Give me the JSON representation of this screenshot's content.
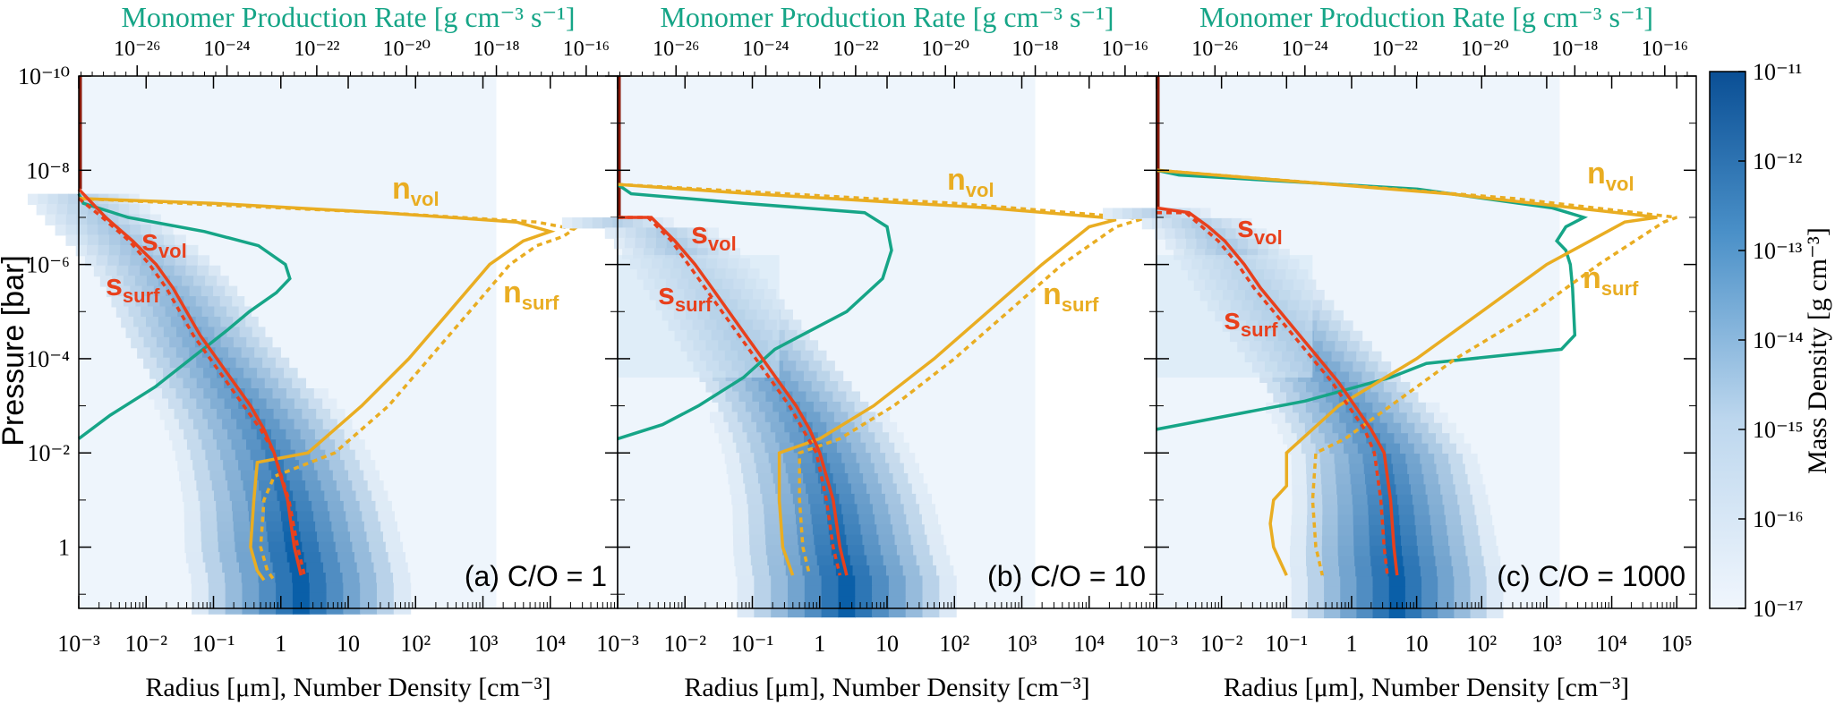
{
  "colors": {
    "green": "#16a587",
    "orange": "#e9ad22",
    "red": "#e8401c",
    "blue_dark": "#0a5fa8",
    "blue_light": "#eef5fc"
  },
  "chart_data": {
    "type": "heatmap",
    "top_axis_label": "Monomer Production Rate [g cm⁻³ s⁻¹]",
    "bottom_axis_label": "Radius [μm], Number Density [cm⁻³]",
    "y_axis_label": "Pressure [bar]",
    "colorbar_label": "Mass Density [g cm⁻³]",
    "colorbar_ticks": [
      "10⁻¹¹",
      "10⁻¹²",
      "10⁻¹³",
      "10⁻¹⁴",
      "10⁻¹⁵",
      "10⁻¹⁶",
      "10⁻¹⁷"
    ],
    "colorbar_range_log10": [
      -17,
      -11
    ],
    "y_ticks": [
      "10⁻¹⁰",
      "10⁻⁸",
      "10⁻⁶",
      "10⁻⁴",
      "10⁻²",
      "1"
    ],
    "y_range_log10_pressure": [
      -10,
      1.3
    ],
    "top_ticks": [
      "10⁻²⁶",
      "10⁻²⁴",
      "10⁻²²",
      "10⁻²⁰",
      "10⁻¹⁸",
      "10⁻¹⁶"
    ],
    "top_range_log10": [
      -27.3,
      -15.3
    ],
    "curve_labels": {
      "n_vol": {
        "main": "n",
        "sub": "vol"
      },
      "n_surf": {
        "main": "n",
        "sub": "surf"
      },
      "s_vol": {
        "main": "s",
        "sub": "vol"
      },
      "s_surf": {
        "main": "s",
        "sub": "surf"
      }
    },
    "panels": [
      {
        "label": "(a) C/O = 1",
        "x_range_log10": [
          -3,
          5
        ],
        "x_ticks": [
          "10⁻³",
          "10⁻²",
          "10⁻¹",
          "1",
          "10",
          "10²",
          "10³",
          "10⁴"
        ],
        "series": {
          "monomer_log10_rate": [
            [
              -7.5,
              -27.3
            ],
            [
              -7.3,
              -27.2
            ],
            [
              -7.0,
              -26.2
            ],
            [
              -6.7,
              -24.5
            ],
            [
              -6.4,
              -23.3
            ],
            [
              -6.0,
              -22.7
            ],
            [
              -5.7,
              -22.6
            ],
            [
              -5.4,
              -22.9
            ],
            [
              -5.0,
              -23.5
            ],
            [
              -4.6,
              -24.0
            ],
            [
              -4.0,
              -24.8
            ],
            [
              -3.4,
              -25.6
            ],
            [
              -2.8,
              -26.6
            ],
            [
              -2.3,
              -27.3
            ]
          ],
          "n_vol": [
            [
              -7.4,
              -3.0
            ],
            [
              -7.3,
              -1.0
            ],
            [
              -7.1,
              1.5
            ],
            [
              -6.9,
              3.5
            ],
            [
              -6.7,
              4.0
            ],
            [
              -6.5,
              3.6
            ],
            [
              -6.0,
              3.1
            ],
            [
              -5.0,
              2.5
            ],
            [
              -4.0,
              1.9
            ],
            [
              -3.0,
              1.2
            ],
            [
              -2.0,
              0.4
            ],
            [
              -1.8,
              -0.35
            ],
            [
              -1.0,
              -0.4
            ],
            [
              0.0,
              -0.45
            ],
            [
              0.5,
              -0.35
            ],
            [
              0.7,
              -0.25
            ]
          ],
          "n_surf": [
            [
              -7.4,
              -3.0
            ],
            [
              -7.1,
              1.5
            ],
            [
              -6.9,
              3.8
            ],
            [
              -6.75,
              4.35
            ],
            [
              -6.6,
              4.2
            ],
            [
              -6.4,
              3.8
            ],
            [
              -6.0,
              3.4
            ],
            [
              -5.0,
              2.8
            ],
            [
              -4.0,
              2.2
            ],
            [
              -3.0,
              1.6
            ],
            [
              -2.0,
              0.8
            ],
            [
              -1.5,
              -0.1
            ],
            [
              -1.0,
              -0.25
            ],
            [
              0.0,
              -0.3
            ],
            [
              0.5,
              -0.2
            ],
            [
              0.7,
              -0.1
            ]
          ],
          "s_vol": [
            [
              -10.0,
              -3.0
            ],
            [
              -7.6,
              -3.0
            ],
            [
              -7.0,
              -2.6
            ],
            [
              -6.5,
              -2.2
            ],
            [
              -6.0,
              -1.85
            ],
            [
              -5.5,
              -1.6
            ],
            [
              -5.0,
              -1.4
            ],
            [
              -4.5,
              -1.2
            ],
            [
              -4.0,
              -0.95
            ],
            [
              -3.5,
              -0.7
            ],
            [
              -3.0,
              -0.45
            ],
            [
              -2.5,
              -0.25
            ],
            [
              -2.0,
              -0.1
            ],
            [
              -1.0,
              0.1
            ],
            [
              0.0,
              0.2
            ],
            [
              0.6,
              0.3
            ]
          ],
          "s_surf": [
            [
              -7.4,
              -3.0
            ],
            [
              -7.0,
              -2.65
            ],
            [
              -6.5,
              -2.25
            ],
            [
              -6.0,
              -1.95
            ],
            [
              -5.5,
              -1.7
            ],
            [
              -5.0,
              -1.5
            ],
            [
              -4.5,
              -1.3
            ],
            [
              -4.0,
              -1.05
            ],
            [
              -3.5,
              -0.8
            ],
            [
              -3.0,
              -0.55
            ],
            [
              -2.5,
              -0.3
            ],
            [
              -2.0,
              -0.1
            ],
            [
              -1.0,
              0.12
            ],
            [
              0.0,
              0.25
            ],
            [
              0.6,
              0.35
            ]
          ]
        }
      },
      {
        "label": "(b) C/O = 10",
        "x_range_log10": [
          -3,
          5
        ],
        "x_ticks": [
          "10⁻³",
          "10⁻²",
          "10⁻¹",
          "1",
          "10",
          "10²",
          "10³",
          "10⁴"
        ],
        "series": {
          "monomer_log10_rate": [
            [
              -7.7,
              -27.3
            ],
            [
              -7.5,
              -27.0
            ],
            [
              -7.3,
              -24.5
            ],
            [
              -7.1,
              -21.8
            ],
            [
              -6.8,
              -21.3
            ],
            [
              -6.3,
              -21.2
            ],
            [
              -5.7,
              -21.4
            ],
            [
              -5.0,
              -22.2
            ],
            [
              -4.2,
              -23.8
            ],
            [
              -3.6,
              -24.5
            ],
            [
              -3.0,
              -25.5
            ],
            [
              -2.6,
              -26.3
            ],
            [
              -2.3,
              -27.3
            ]
          ],
          "n_vol": [
            [
              -7.7,
              -3.0
            ],
            [
              -7.5,
              -1.0
            ],
            [
              -7.2,
              2.5
            ],
            [
              -7.0,
              4.2
            ],
            [
              -6.95,
              4.4
            ],
            [
              -6.8,
              4.0
            ],
            [
              -6.0,
              3.3
            ],
            [
              -5.0,
              2.5
            ],
            [
              -4.0,
              1.7
            ],
            [
              -3.0,
              0.8
            ],
            [
              -2.3,
              0.0
            ],
            [
              -2.0,
              -0.6
            ],
            [
              -1.0,
              -0.6
            ],
            [
              0.0,
              -0.55
            ],
            [
              0.6,
              -0.4
            ]
          ],
          "n_surf": [
            [
              -7.7,
              -3.0
            ],
            [
              -7.3,
              2.0
            ],
            [
              -7.0,
              4.6
            ],
            [
              -6.95,
              4.75
            ],
            [
              -6.8,
              4.4
            ],
            [
              -6.0,
              3.6
            ],
            [
              -5.0,
              2.8
            ],
            [
              -4.0,
              2.0
            ],
            [
              -3.0,
              1.1
            ],
            [
              -2.3,
              0.3
            ],
            [
              -2.0,
              -0.3
            ],
            [
              -1.0,
              -0.3
            ],
            [
              0.0,
              -0.25
            ],
            [
              0.6,
              -0.15
            ]
          ],
          "s_vol": [
            [
              -10.0,
              -3.0
            ],
            [
              -7.0,
              -3.0
            ],
            [
              -7.0,
              -2.5
            ],
            [
              -6.5,
              -2.15
            ],
            [
              -6.0,
              -1.85
            ],
            [
              -5.5,
              -1.6
            ],
            [
              -5.0,
              -1.35
            ],
            [
              -4.5,
              -1.1
            ],
            [
              -4.0,
              -0.85
            ],
            [
              -3.5,
              -0.6
            ],
            [
              -3.0,
              -0.35
            ],
            [
              -2.5,
              -0.15
            ],
            [
              -2.0,
              0.0
            ],
            [
              -1.0,
              0.2
            ],
            [
              0.0,
              0.3
            ],
            [
              0.6,
              0.4
            ]
          ],
          "s_surf": [
            [
              -7.0,
              -3.0
            ],
            [
              -7.0,
              -2.55
            ],
            [
              -6.5,
              -2.2
            ],
            [
              -6.0,
              -1.95
            ],
            [
              -5.5,
              -1.7
            ],
            [
              -5.0,
              -1.45
            ],
            [
              -4.5,
              -1.2
            ],
            [
              -4.0,
              -0.95
            ],
            [
              -3.5,
              -0.7
            ],
            [
              -3.0,
              -0.45
            ],
            [
              -2.5,
              -0.25
            ],
            [
              -2.0,
              -0.05
            ],
            [
              -1.0,
              0.1
            ],
            [
              0.0,
              0.2
            ],
            [
              0.6,
              0.3
            ]
          ]
        }
      },
      {
        "label": "(c) C/O = 1000",
        "x_range_log10": [
          -3,
          5.3
        ],
        "x_ticks": [
          "10⁻³",
          "10⁻²",
          "10⁻¹",
          "1",
          "10",
          "10²",
          "10³",
          "10⁴",
          "10⁵"
        ],
        "series": {
          "monomer_log10_rate": [
            [
              -8.0,
              -27.3
            ],
            [
              -7.9,
              -26.8
            ],
            [
              -7.6,
              -21.5
            ],
            [
              -7.2,
              -18.5
            ],
            [
              -7.0,
              -17.8
            ],
            [
              -6.8,
              -18.2
            ],
            [
              -6.5,
              -18.4
            ],
            [
              -6.3,
              -18.2
            ],
            [
              -6.0,
              -18.1
            ],
            [
              -5.5,
              -18.05
            ],
            [
              -4.5,
              -18.0
            ],
            [
              -4.2,
              -18.3
            ],
            [
              -3.9,
              -21.3
            ],
            [
              -3.6,
              -22.1
            ],
            [
              -3.1,
              -24.0
            ],
            [
              -2.5,
              -27.3
            ]
          ],
          "n_vol": [
            [
              -8.0,
              -3.0
            ],
            [
              -7.5,
              1.5
            ],
            [
              -7.05,
              4.4
            ],
            [
              -7.0,
              4.7
            ],
            [
              -6.9,
              4.2
            ],
            [
              -6.0,
              3.0
            ],
            [
              -5.0,
              2.0
            ],
            [
              -4.0,
              1.0
            ],
            [
              -3.0,
              -0.2
            ],
            [
              -2.0,
              -1.0
            ],
            [
              -1.3,
              -1.0
            ],
            [
              -1.0,
              -1.2
            ],
            [
              -0.5,
              -1.25
            ],
            [
              0.0,
              -1.2
            ],
            [
              0.6,
              -1.0
            ]
          ],
          "n_surf": [
            [
              -8.0,
              -3.0
            ],
            [
              -7.4,
              2.5
            ],
            [
              -7.0,
              5.0
            ],
            [
              -6.9,
              4.8
            ],
            [
              -6.0,
              3.8
            ],
            [
              -5.0,
              2.8
            ],
            [
              -4.0,
              1.6
            ],
            [
              -3.0,
              0.6
            ],
            [
              -2.3,
              -0.1
            ],
            [
              -2.0,
              -0.55
            ],
            [
              -1.0,
              -0.6
            ],
            [
              0.0,
              -0.55
            ],
            [
              0.6,
              -0.45
            ]
          ],
          "s_vol": [
            [
              -10.0,
              -3.0
            ],
            [
              -7.2,
              -3.0
            ],
            [
              -7.1,
              -2.5
            ],
            [
              -6.8,
              -2.2
            ],
            [
              -6.5,
              -1.95
            ],
            [
              -6.0,
              -1.65
            ],
            [
              -5.5,
              -1.4
            ],
            [
              -5.0,
              -1.1
            ],
            [
              -4.5,
              -0.8
            ],
            [
              -4.0,
              -0.5
            ],
            [
              -3.5,
              -0.2
            ],
            [
              -3.0,
              0.05
            ],
            [
              -2.5,
              0.3
            ],
            [
              -2.0,
              0.5
            ],
            [
              -1.0,
              0.6
            ],
            [
              0.0,
              0.65
            ],
            [
              0.6,
              0.7
            ]
          ],
          "s_surf": [
            [
              -7.1,
              -3.0
            ],
            [
              -7.1,
              -2.55
            ],
            [
              -6.8,
              -2.3
            ],
            [
              -6.5,
              -2.05
            ],
            [
              -6.0,
              -1.75
            ],
            [
              -5.5,
              -1.5
            ],
            [
              -5.0,
              -1.2
            ],
            [
              -4.5,
              -0.9
            ],
            [
              -4.0,
              -0.6
            ],
            [
              -3.5,
              -0.3
            ],
            [
              -3.0,
              -0.05
            ],
            [
              -2.5,
              0.2
            ],
            [
              -2.0,
              0.35
            ],
            [
              -1.0,
              0.45
            ],
            [
              0.0,
              0.5
            ],
            [
              0.6,
              0.55
            ]
          ]
        }
      }
    ]
  }
}
